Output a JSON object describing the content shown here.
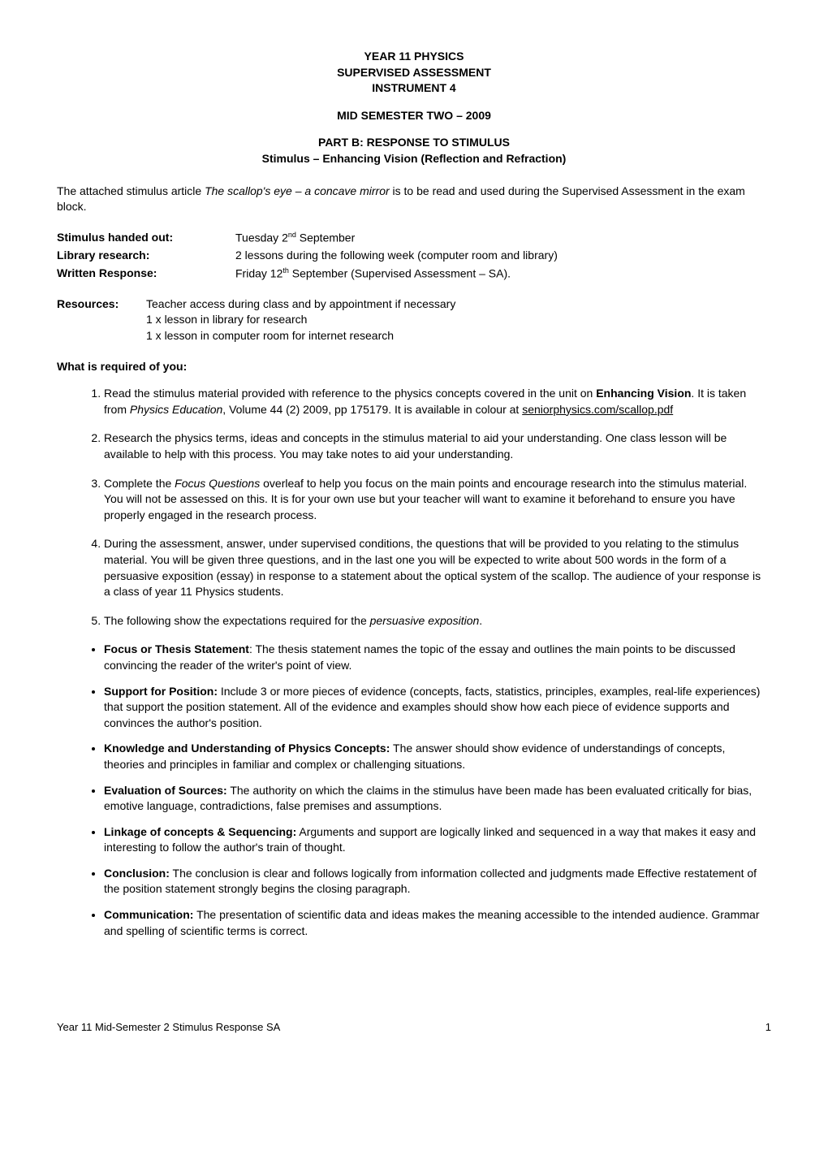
{
  "header": {
    "line1": "YEAR 11 PHYSICS",
    "line2": "SUPERVISED ASSESSMENT",
    "line3": "INSTRUMENT 4",
    "semester": "MID SEMESTER TWO – 2009",
    "partTitle": "PART B: RESPONSE TO STIMULUS",
    "stimulusTitle": "Stimulus – Enhancing Vision (Reflection and Refraction)"
  },
  "intro": {
    "prefix": "The attached stimulus article ",
    "italic": "The scallop's eye – a concave mirror",
    "suffix": " is to be read and used during the Supervised Assessment in the exam block."
  },
  "schedule": {
    "handedOut": {
      "label": "Stimulus handed out:",
      "value_pre": "Tuesday 2",
      "value_sup": "nd",
      "value_post": " September"
    },
    "library": {
      "label": "Library research:",
      "value": "2 lessons during the following week (computer room and library)"
    },
    "written": {
      "label": "Written Response:",
      "value_pre": "Friday 12",
      "value_sup": "th",
      "value_post": " September (Supervised Assessment – SA)."
    }
  },
  "resources": {
    "label": "Resources:",
    "line1": "Teacher access during class and by appointment if necessary",
    "line2": "1 x lesson in library for research",
    "line3": "1 x lesson in computer room for internet research"
  },
  "requiredHeading": "What is required of you:",
  "numbered": [
    {
      "parts": [
        {
          "t": "Read the stimulus material provided with reference to the physics concepts covered in the unit on "
        },
        {
          "t": "Enhancing Vision",
          "bold": true
        },
        {
          "t": ". It is taken from "
        },
        {
          "t": "Physics Education",
          "italic": true
        },
        {
          "t": ", Volume 44 (2) 2009, pp 175179. It is available in colour at "
        },
        {
          "t": "seniorphysics.com/scallop.pdf",
          "underline": true
        }
      ]
    },
    {
      "parts": [
        {
          "t": "Research the physics terms, ideas and concepts in the stimulus material to aid your understanding. One class lesson will be available to help with this process. You may take notes to aid your understanding."
        }
      ]
    },
    {
      "parts": [
        {
          "t": "Complete the "
        },
        {
          "t": "Focus Questions",
          "italic": true
        },
        {
          "t": " overleaf to help you focus on the main points and encourage research into the stimulus material. You will not be assessed on this. It is for your own use but your teacher will want to examine it beforehand to ensure you have properly engaged in the research process."
        }
      ]
    },
    {
      "parts": [
        {
          "t": "During the assessment, answer, under supervised conditions, the questions that will be provided to you relating to the stimulus material.  You will be given three questions, and in the last one you will be expected to write about 500 words in the form of a persuasive exposition (essay) in response to a statement about the optical system of the scallop. The audience of your response is a class of year 11 Physics students."
        }
      ]
    },
    {
      "parts": [
        {
          "t": "The following show the expectations required for the "
        },
        {
          "t": "persuasive exposition",
          "italic": true
        },
        {
          "t": "."
        }
      ]
    }
  ],
  "bullets": [
    {
      "title": "Focus or Thesis Statement",
      "text": ": The thesis statement names the topic of the essay and outlines the main points to be discussed convincing the reader of the writer's point of view."
    },
    {
      "title": "Support for Position:",
      "text": " Include 3 or more pieces of evidence (concepts, facts, statistics, principles, examples, real-life experiences) that support the position statement. All of the evidence and examples should show how each piece of evidence supports and convinces the author's position."
    },
    {
      "title": "Knowledge and Understanding of Physics Concepts:",
      "text": " The answer should show evidence of understandings of concepts, theories and principles in familiar and complex or challenging situations."
    },
    {
      "title": "Evaluation of Sources:",
      "text": " The authority on which the claims in the stimulus have been made has been evaluated critically for bias, emotive language, contradictions, false premises and assumptions."
    },
    {
      "title": "Linkage of concepts & Sequencing:",
      "text": " Arguments and support are logically linked and sequenced in a way that makes it easy and interesting to follow the author's train of thought."
    },
    {
      "title": "Conclusion:",
      "text": " The conclusion is clear and follows logically from information collected and judgments made Effective restatement of the position statement strongly begins the closing paragraph."
    },
    {
      "title": "Communication:",
      "text": " The presentation of scientific data and ideas makes the meaning accessible to the intended audience. Grammar and spelling of scientific terms is correct."
    }
  ],
  "footer": {
    "left": "Year 11 Mid-Semester 2  Stimulus Response SA",
    "page": "1"
  }
}
